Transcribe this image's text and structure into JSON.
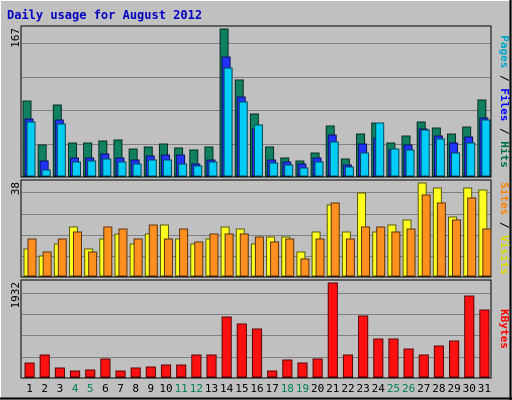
{
  "chart_data": {
    "type": "bar",
    "title": "Daily usage for August 2012",
    "categories": [
      "1",
      "2",
      "3",
      "4",
      "5",
      "6",
      "7",
      "8",
      "9",
      "10",
      "11",
      "12",
      "13",
      "14",
      "15",
      "16",
      "17",
      "18",
      "19",
      "20",
      "21",
      "22",
      "23",
      "24",
      "25",
      "26",
      "27",
      "28",
      "29",
      "30",
      "31"
    ],
    "weekend_days": [
      4,
      5,
      11,
      12,
      18,
      19,
      25,
      26
    ],
    "panels": [
      {
        "ymax_label": "167",
        "ylim": [
          0,
          167
        ],
        "legend": [
          "Pages",
          "Files",
          "Hits"
        ],
        "legend_colors": [
          "#00a6c8",
          "#0000ff",
          "#007040"
        ],
        "series": [
          {
            "name": "Hits",
            "color": "#108060",
            "values": [
              85,
              35,
              81,
              38,
              38,
              40,
              41,
              31,
              33,
              36,
              32,
              29,
              33,
              167,
              109,
              71,
              33,
              21,
              17,
              26,
              57,
              19,
              48,
              60,
              38,
              46,
              61,
              55,
              48,
              56,
              86
            ]
          },
          {
            "name": "Files",
            "color": "#2233ff",
            "values": [
              65,
              17,
              64,
              20,
              20,
              25,
              20,
              18,
              23,
              24,
              24,
              14,
              18,
              135,
              90,
              53,
              18,
              16,
              14,
              20,
              47,
              12,
              36,
              43,
              30,
              35,
              53,
              45,
              38,
              44,
              66
            ]
          },
          {
            "name": "Pages",
            "color": "#00ccf8",
            "values": [
              61,
              7,
              59,
              16,
              17,
              19,
              16,
              14,
              18,
              18,
              14,
              11,
              16,
              123,
              84,
              58,
              15,
              13,
              9,
              16,
              39,
              10,
              26,
              60,
              31,
              29,
              52,
              42,
              26,
              37,
              64
            ]
          }
        ]
      },
      {
        "ymax_label": "38",
        "ylim": [
          0,
          38
        ],
        "legend": [
          "Sites",
          "Visits"
        ],
        "legend_colors": [
          "#ff8000",
          "#e0e000"
        ],
        "series": [
          {
            "name": "Visits",
            "color": "#ffff20",
            "values": [
              11,
              8,
              13,
              20,
              11,
              15,
              17,
              13,
              17,
              21,
              15,
              13,
              15,
              20,
              19,
              13,
              16,
              16,
              10,
              18,
              29,
              18,
              34,
              18,
              21,
              23,
              38,
              36,
              24,
              36,
              35
            ]
          },
          {
            "name": "Sites",
            "color": "#ff9020",
            "values": [
              15,
              10,
              15,
              18,
              10,
              20,
              19,
              15,
              21,
              15,
              19,
              14,
              17,
              17,
              17,
              16,
              14,
              15,
              7,
              15,
              30,
              15,
              20,
              20,
              18,
              19,
              33,
              30,
              23,
              32,
              19
            ]
          }
        ]
      },
      {
        "ymax_label": "1932",
        "ylim": [
          0,
          1932
        ],
        "legend": [
          "KBytes"
        ],
        "legend_colors": [
          "#ff0000"
        ],
        "series": [
          {
            "name": "KBytes",
            "color": "#ff1010",
            "values": [
              295,
              459,
              177,
              115,
              147,
              361,
              127,
              177,
              213,
              246,
              246,
              459,
              459,
              1230,
              1082,
              984,
              115,
              344,
              279,
              377,
              1932,
              459,
              1263,
              787,
              787,
              574,
              443,
              640,
              738,
              1669,
              1378
            ]
          }
        ]
      }
    ]
  }
}
